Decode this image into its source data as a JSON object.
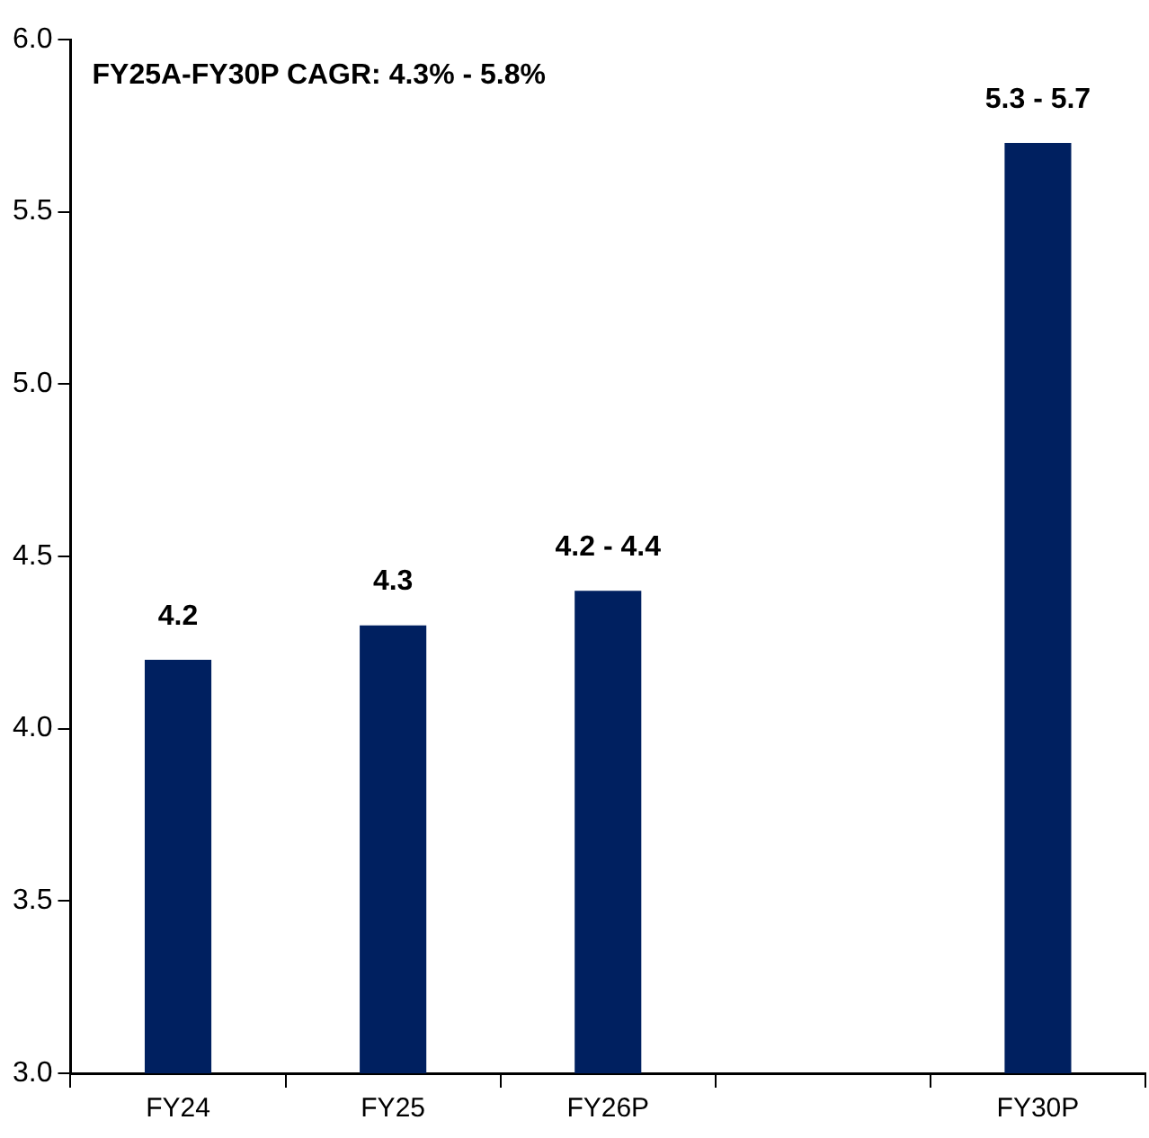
{
  "chart_data": {
    "type": "bar",
    "categories": [
      "FY24",
      "FY25",
      "FY26P",
      null,
      "FY30P"
    ],
    "values": [
      4.2,
      4.3,
      4.4,
      null,
      5.7
    ],
    "value_labels": [
      "4.2",
      "4.3",
      null,
      null,
      null
    ],
    "color": "#002060",
    "ylim": [
      3.0,
      6.0
    ],
    "yticks": [
      {
        "value": 3,
        "label": "3.0"
      },
      3.5,
      {
        "value": 4,
        "label": "4.0"
      },
      4.5,
      {
        "value": 5,
        "label": "5.0"
      },
      5.5,
      {
        "value": 6,
        "label": "6.0"
      }
    ],
    "grid": false,
    "legend": false,
    "annotations": [
      "FY25A-FY30P CAGR: 4.3% - 5.8%",
      {
        "text": "4.2 - 4.4",
        "x": "FY26P",
        "y": 4.4
      },
      {
        "text": "5.3 - 5.7",
        "x": "FY30P",
        "y": 5.7
      }
    ]
  }
}
